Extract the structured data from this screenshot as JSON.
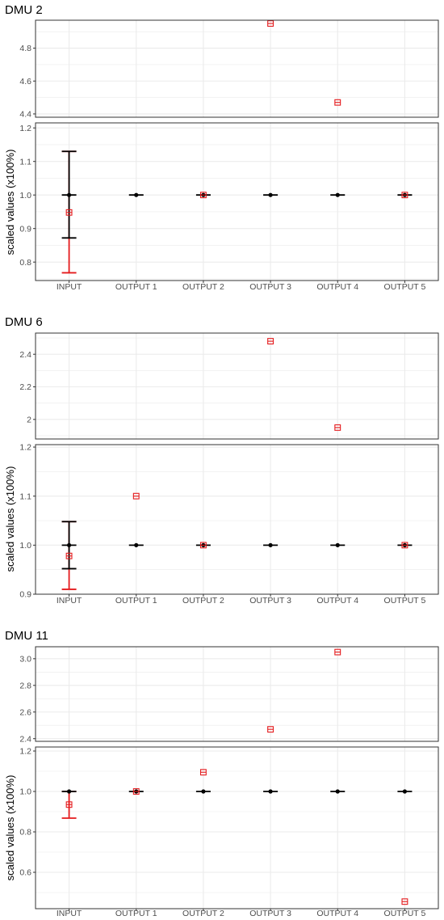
{
  "chart_data": [
    {
      "type": "scatter",
      "title": "DMU 2",
      "ylabel": "scaled values (x100%)",
      "categories": [
        "INPUT",
        "OUTPUT 1",
        "OUTPUT 2",
        "OUTPUT 3",
        "OUTPUT 4",
        "OUTPUT 5"
      ],
      "upper_panel": {
        "ylim": [
          4.38,
          4.97
        ],
        "yticks": [
          4.4,
          4.6,
          4.8
        ],
        "ytick_labels": [
          "4.4",
          "4.6",
          "4.8"
        ],
        "points": [
          {
            "category": "OUTPUT 3",
            "value": 4.95
          },
          {
            "category": "OUTPUT 4",
            "value": 4.47
          }
        ]
      },
      "lower_panel": {
        "ylim": [
          0.745,
          1.215
        ],
        "yticks": [
          0.8,
          0.9,
          1.0,
          1.1,
          1.2
        ],
        "ytick_labels": [
          "0.8",
          "0.9",
          "1.0",
          "1.1",
          "1.2"
        ],
        "black_points": [
          1.0,
          1.0,
          1.0,
          1.0,
          1.0,
          1.0
        ],
        "black_intervals": [
          [
            0.872,
            1.13
          ],
          null,
          null,
          null,
          null,
          null
        ],
        "red_points": [
          0.948,
          null,
          1.0,
          null,
          null,
          1.0
        ],
        "red_intervals": [
          [
            0.768,
            1.13
          ],
          null,
          null,
          null,
          null,
          null
        ]
      }
    },
    {
      "type": "scatter",
      "title": "DMU 6",
      "ylabel": "scaled values (x100%)",
      "categories": [
        "INPUT",
        "OUTPUT 1",
        "OUTPUT 2",
        "OUTPUT 3",
        "OUTPUT 4",
        "OUTPUT 5"
      ],
      "upper_panel": {
        "ylim": [
          1.88,
          2.53
        ],
        "yticks": [
          2.0,
          2.2,
          2.4
        ],
        "ytick_labels": [
          "2",
          "2.2",
          "2.4"
        ],
        "points": [
          {
            "category": "OUTPUT 3",
            "value": 2.48
          },
          {
            "category": "OUTPUT 4",
            "value": 1.95
          }
        ]
      },
      "lower_panel": {
        "ylim": [
          0.9,
          1.205
        ],
        "yticks": [
          0.9,
          1.0,
          1.1,
          1.2
        ],
        "ytick_labels": [
          "0.9",
          "1.0",
          "1.1",
          "1.2"
        ],
        "black_points": [
          1.0,
          1.0,
          1.0,
          1.0,
          1.0,
          1.0
        ],
        "black_intervals": [
          [
            0.952,
            1.048
          ],
          null,
          null,
          null,
          null,
          null
        ],
        "red_points": [
          0.978,
          1.1,
          1.0,
          null,
          null,
          1.0
        ],
        "red_intervals": [
          [
            0.91,
            1.048
          ],
          null,
          null,
          null,
          null,
          null
        ]
      }
    },
    {
      "type": "scatter",
      "title": "DMU 11",
      "ylabel": "scaled values (x100%)",
      "categories": [
        "INPUT",
        "OUTPUT 1",
        "OUTPUT 2",
        "OUTPUT 3",
        "OUTPUT 4",
        "OUTPUT 5"
      ],
      "upper_panel": {
        "ylim": [
          2.38,
          3.09
        ],
        "yticks": [
          2.4,
          2.6,
          2.8,
          3.0
        ],
        "ytick_labels": [
          "2.4",
          "2.6",
          "2.8",
          "3.0"
        ],
        "points": [
          {
            "category": "OUTPUT 3",
            "value": 2.47
          },
          {
            "category": "OUTPUT 4",
            "value": 3.05
          }
        ]
      },
      "lower_panel": {
        "ylim": [
          0.42,
          1.22
        ],
        "yticks": [
          0.6,
          0.8,
          1.0,
          1.2
        ],
        "ytick_labels": [
          "0.6",
          "0.8",
          "1.0",
          "1.2"
        ],
        "black_points": [
          1.0,
          1.0,
          1.0,
          1.0,
          1.0,
          1.0
        ],
        "black_intervals": [
          null,
          null,
          null,
          null,
          null,
          null
        ],
        "red_points": [
          0.935,
          1.0,
          1.095,
          null,
          null,
          0.455
        ],
        "red_intervals": [
          [
            0.868,
            1.0
          ],
          null,
          null,
          null,
          null,
          null
        ]
      }
    }
  ],
  "colors": {
    "black_series": "#000000",
    "red_series": "#e41a1c",
    "grid": "#ebebeb",
    "panel_border": "#333333",
    "tick_text": "#4d4d4d"
  },
  "grid": true
}
